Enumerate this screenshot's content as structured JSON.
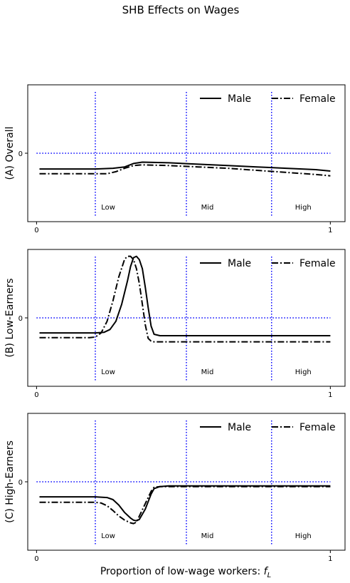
{
  "figure": {
    "suptitle": "SHB Effects on Wages",
    "xlabel_prefix": "Proportion of low-wage workers: ",
    "xlabel_var": "f",
    "xlabel_sub": "L"
  },
  "colors": {
    "lines": "#000000",
    "reference": "#0000ff",
    "frame": "#000000"
  },
  "chart_data": [
    {
      "type": "line",
      "title": "",
      "ylabel": "(A) Overall",
      "xlim": [
        -0.03,
        1.05
      ],
      "ylim": [
        -1,
        1
      ],
      "xticks": [
        0,
        1
      ],
      "xtick_labels": [
        "0",
        "1"
      ],
      "yticks": [
        0
      ],
      "ytick_labels": [
        "0"
      ],
      "hline": 0,
      "vlines": [
        0.2,
        0.51,
        0.8
      ],
      "region_labels": [
        {
          "text": "Low",
          "x": 0.22
        },
        {
          "text": "Mid",
          "x": 0.56
        },
        {
          "text": "High",
          "x": 0.88
        }
      ],
      "legend": {
        "position": "top-right",
        "entries": [
          "Male",
          "Female"
        ]
      },
      "series": [
        {
          "name": "Male",
          "style": "solid",
          "x": [
            0.01,
            0.2,
            0.26,
            0.3,
            0.33,
            0.36,
            0.45,
            0.55,
            0.65,
            0.75,
            0.85,
            0.95,
            1.0
          ],
          "y": [
            -0.23,
            -0.23,
            -0.22,
            -0.2,
            -0.15,
            -0.13,
            -0.14,
            -0.16,
            -0.18,
            -0.2,
            -0.22,
            -0.24,
            -0.26
          ]
        },
        {
          "name": "Female",
          "style": "dashdot",
          "x": [
            0.01,
            0.2,
            0.24,
            0.27,
            0.3,
            0.33,
            0.36,
            0.45,
            0.55,
            0.65,
            0.75,
            0.85,
            0.95,
            1.0
          ],
          "y": [
            -0.3,
            -0.3,
            -0.3,
            -0.27,
            -0.22,
            -0.18,
            -0.17,
            -0.18,
            -0.2,
            -0.22,
            -0.25,
            -0.28,
            -0.31,
            -0.33
          ]
        }
      ]
    },
    {
      "type": "line",
      "title": "",
      "ylabel": "(B) Low-Earners",
      "xlim": [
        -0.03,
        1.05
      ],
      "ylim": [
        -1,
        1
      ],
      "xticks": [
        0,
        1
      ],
      "xtick_labels": [
        "0",
        "1"
      ],
      "yticks": [
        0
      ],
      "ytick_labels": [
        "0"
      ],
      "hline": 0,
      "vlines": [
        0.2,
        0.51,
        0.8
      ],
      "region_labels": [
        {
          "text": "Low",
          "x": 0.22
        },
        {
          "text": "Mid",
          "x": 0.56
        },
        {
          "text": "High",
          "x": 0.88
        }
      ],
      "legend": {
        "position": "top-right",
        "entries": [
          "Male",
          "Female"
        ]
      },
      "series": [
        {
          "name": "Male",
          "style": "solid",
          "x": [
            0.01,
            0.2,
            0.23,
            0.25,
            0.27,
            0.29,
            0.31,
            0.32,
            0.33,
            0.34,
            0.35,
            0.36,
            0.37,
            0.38,
            0.39,
            0.4,
            0.42,
            0.5,
            0.6,
            0.8,
            1.0
          ],
          "y": [
            -0.22,
            -0.22,
            -0.21,
            -0.17,
            -0.05,
            0.2,
            0.55,
            0.75,
            0.88,
            0.9,
            0.85,
            0.72,
            0.45,
            0.15,
            -0.12,
            -0.24,
            -0.26,
            -0.26,
            -0.26,
            -0.26,
            -0.26
          ]
        },
        {
          "name": "Female",
          "style": "dashdot",
          "x": [
            0.01,
            0.18,
            0.2,
            0.22,
            0.24,
            0.26,
            0.28,
            0.3,
            0.31,
            0.32,
            0.33,
            0.34,
            0.35,
            0.36,
            0.37,
            0.38,
            0.39,
            0.4,
            0.45,
            0.6,
            0.8,
            1.0
          ],
          "y": [
            -0.29,
            -0.29,
            -0.28,
            -0.22,
            -0.05,
            0.25,
            0.6,
            0.86,
            0.9,
            0.9,
            0.85,
            0.72,
            0.5,
            0.2,
            -0.1,
            -0.3,
            -0.34,
            -0.35,
            -0.35,
            -0.35,
            -0.35,
            -0.35
          ]
        }
      ]
    },
    {
      "type": "line",
      "title": "",
      "ylabel": "(C) High-Earners",
      "xlim": [
        -0.03,
        1.05
      ],
      "ylim": [
        -1,
        1
      ],
      "xticks": [
        0,
        1
      ],
      "xtick_labels": [
        "0",
        "1"
      ],
      "yticks": [
        0
      ],
      "ytick_labels": [
        "0"
      ],
      "hline": 0,
      "vlines": [
        0.2,
        0.51,
        0.8
      ],
      "region_labels": [
        {
          "text": "Low",
          "x": 0.22
        },
        {
          "text": "Mid",
          "x": 0.56
        },
        {
          "text": "High",
          "x": 0.88
        }
      ],
      "legend": {
        "position": "top-right",
        "entries": [
          "Male",
          "Female"
        ]
      },
      "series": [
        {
          "name": "Male",
          "style": "solid",
          "x": [
            0.01,
            0.2,
            0.24,
            0.26,
            0.28,
            0.3,
            0.32,
            0.33,
            0.34,
            0.35,
            0.37,
            0.39,
            0.4,
            0.42,
            0.45,
            0.6,
            0.8,
            1.0
          ],
          "y": [
            -0.22,
            -0.22,
            -0.23,
            -0.26,
            -0.34,
            -0.45,
            -0.53,
            -0.56,
            -0.57,
            -0.55,
            -0.4,
            -0.18,
            -0.1,
            -0.07,
            -0.06,
            -0.06,
            -0.06,
            -0.06
          ]
        },
        {
          "name": "Female",
          "style": "dashdot",
          "x": [
            0.01,
            0.2,
            0.22,
            0.24,
            0.26,
            0.28,
            0.3,
            0.32,
            0.33,
            0.34,
            0.35,
            0.37,
            0.39,
            0.4,
            0.42,
            0.45,
            0.6,
            0.8,
            1.0
          ],
          "y": [
            -0.3,
            -0.3,
            -0.31,
            -0.35,
            -0.42,
            -0.5,
            -0.56,
            -0.6,
            -0.61,
            -0.59,
            -0.5,
            -0.32,
            -0.14,
            -0.08,
            -0.07,
            -0.07,
            -0.07,
            -0.07,
            -0.07
          ]
        }
      ]
    }
  ]
}
